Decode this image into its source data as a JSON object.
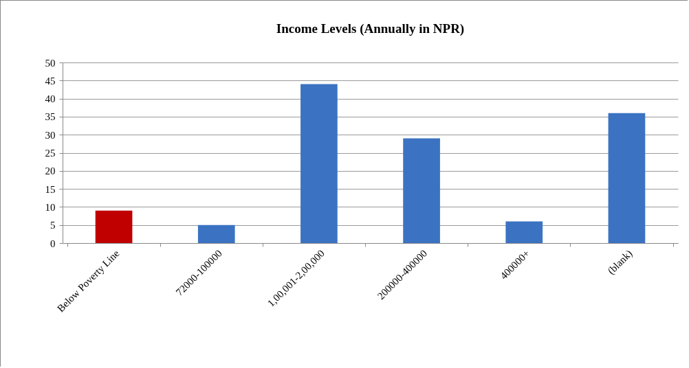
{
  "chart_data": {
    "type": "bar",
    "title": "Income Levels (Annually in NPR)",
    "categories": [
      "Below Poverty Line",
      "72000-100000",
      "1,00,001-2,00,000",
      "200000-400000",
      "400000+",
      "(blank)"
    ],
    "values": [
      9,
      5,
      44,
      29,
      6,
      36
    ],
    "colors": [
      "#c00000",
      "#3b73c2",
      "#3b73c2",
      "#3b73c2",
      "#3b73c2",
      "#3b73c2"
    ],
    "ylim": [
      0,
      50
    ],
    "yticks": [
      0,
      5,
      10,
      15,
      20,
      25,
      30,
      35,
      40,
      45,
      50
    ],
    "grid": "y"
  }
}
